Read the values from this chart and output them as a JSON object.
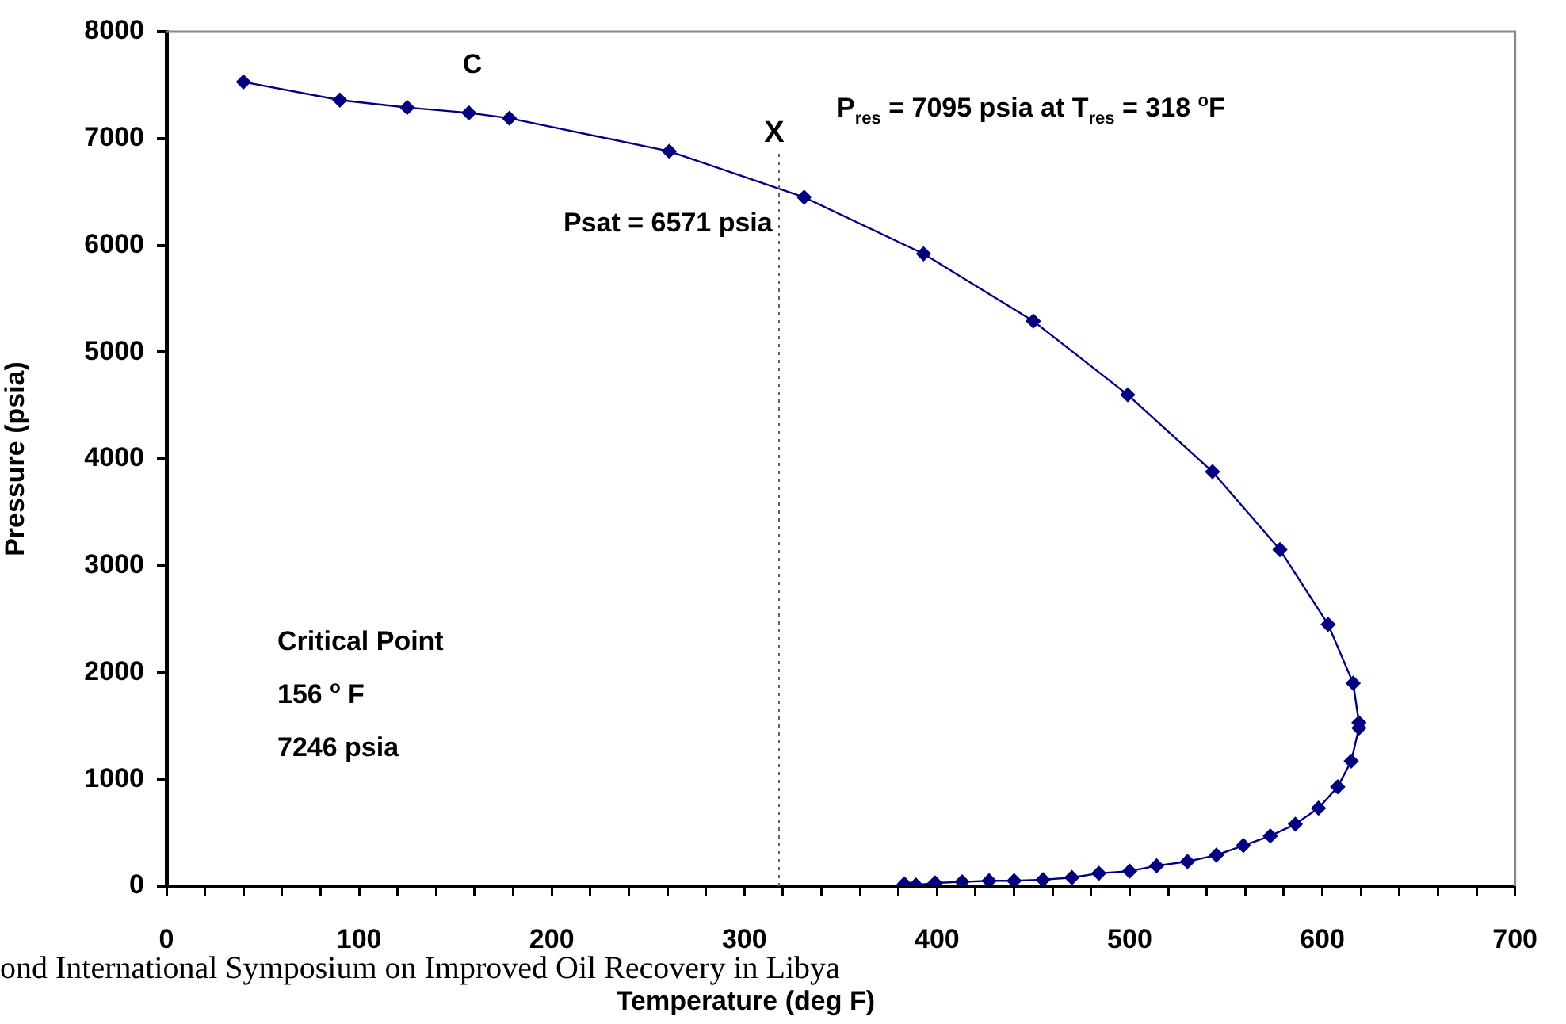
{
  "chart_data": {
    "type": "line",
    "xlabel": "Temperature (deg F)",
    "ylabel": "Pressure (psia)",
    "x": [
      40,
      90,
      125,
      157,
      178,
      261,
      331,
      393,
      450,
      499,
      543,
      578,
      603,
      616,
      619,
      619,
      615,
      608,
      598,
      586,
      573,
      559,
      545,
      530,
      514,
      500,
      484,
      470,
      455,
      440,
      427,
      413,
      399,
      389,
      383
    ],
    "series": [
      {
        "color": "#000080",
        "values": [
          7530,
          7360,
          7290,
          7240,
          7190,
          6880,
          6450,
          5920,
          5290,
          4600,
          3880,
          3150,
          2450,
          1900,
          1530,
          1480,
          1170,
          930,
          730,
          580,
          470,
          380,
          290,
          230,
          190,
          140,
          120,
          80,
          60,
          50,
          50,
          40,
          30,
          10,
          20
        ]
      }
    ],
    "xlim": [
      0,
      700
    ],
    "ylim": [
      0,
      8000
    ],
    "xticks": [
      0,
      {
        "value": 20,
        "label": null
      },
      {
        "value": 40,
        "label": null
      },
      {
        "value": 60,
        "label": null
      },
      {
        "value": 80,
        "label": null
      },
      100,
      {
        "value": 120,
        "label": null
      },
      {
        "value": 140,
        "label": null
      },
      {
        "value": 160,
        "label": null
      },
      {
        "value": 180,
        "label": null
      },
      200,
      {
        "value": 220,
        "label": null
      },
      {
        "value": 240,
        "label": null
      },
      {
        "value": 260,
        "label": null
      },
      {
        "value": 280,
        "label": null
      },
      300,
      {
        "value": 320,
        "label": null
      },
      {
        "value": 340,
        "label": null
      },
      {
        "value": 360,
        "label": null
      },
      {
        "value": 380,
        "label": null
      },
      400,
      {
        "value": 420,
        "label": null
      },
      {
        "value": 440,
        "label": null
      },
      {
        "value": 460,
        "label": null
      },
      {
        "value": 480,
        "label": null
      },
      500,
      {
        "value": 520,
        "label": null
      },
      {
        "value": 540,
        "label": null
      },
      {
        "value": 560,
        "label": null
      },
      {
        "value": 580,
        "label": null
      },
      600,
      {
        "value": 620,
        "label": null
      },
      {
        "value": 640,
        "label": null
      },
      {
        "value": 660,
        "label": null
      },
      {
        "value": 680,
        "label": null
      },
      700
    ],
    "yticks": [
      0,
      1000,
      2000,
      3000,
      4000,
      5000,
      6000,
      7000,
      8000
    ],
    "grid": false,
    "legend": false,
    "marker": "diamond",
    "line_style": "solid",
    "ref_lines": [
      {
        "axis": "x",
        "value": 318,
        "label": "X",
        "line_style": "dotted",
        "color": "#606060"
      }
    ],
    "annotations": [
      {
        "text": "C",
        "x": 157,
        "y": 7240
      },
      {
        "text": "Psat = 6571 psia",
        "x": 318,
        "y": 6571
      },
      "P$_{res}$ = 7095 psia at T$_{res}$ = 318 $^{o}$F",
      "Critical Point",
      "156 $^{o}$ F",
      "7246 psia",
      "ond International Symposium on Improved Oil Recovery in Libya"
    ]
  }
}
